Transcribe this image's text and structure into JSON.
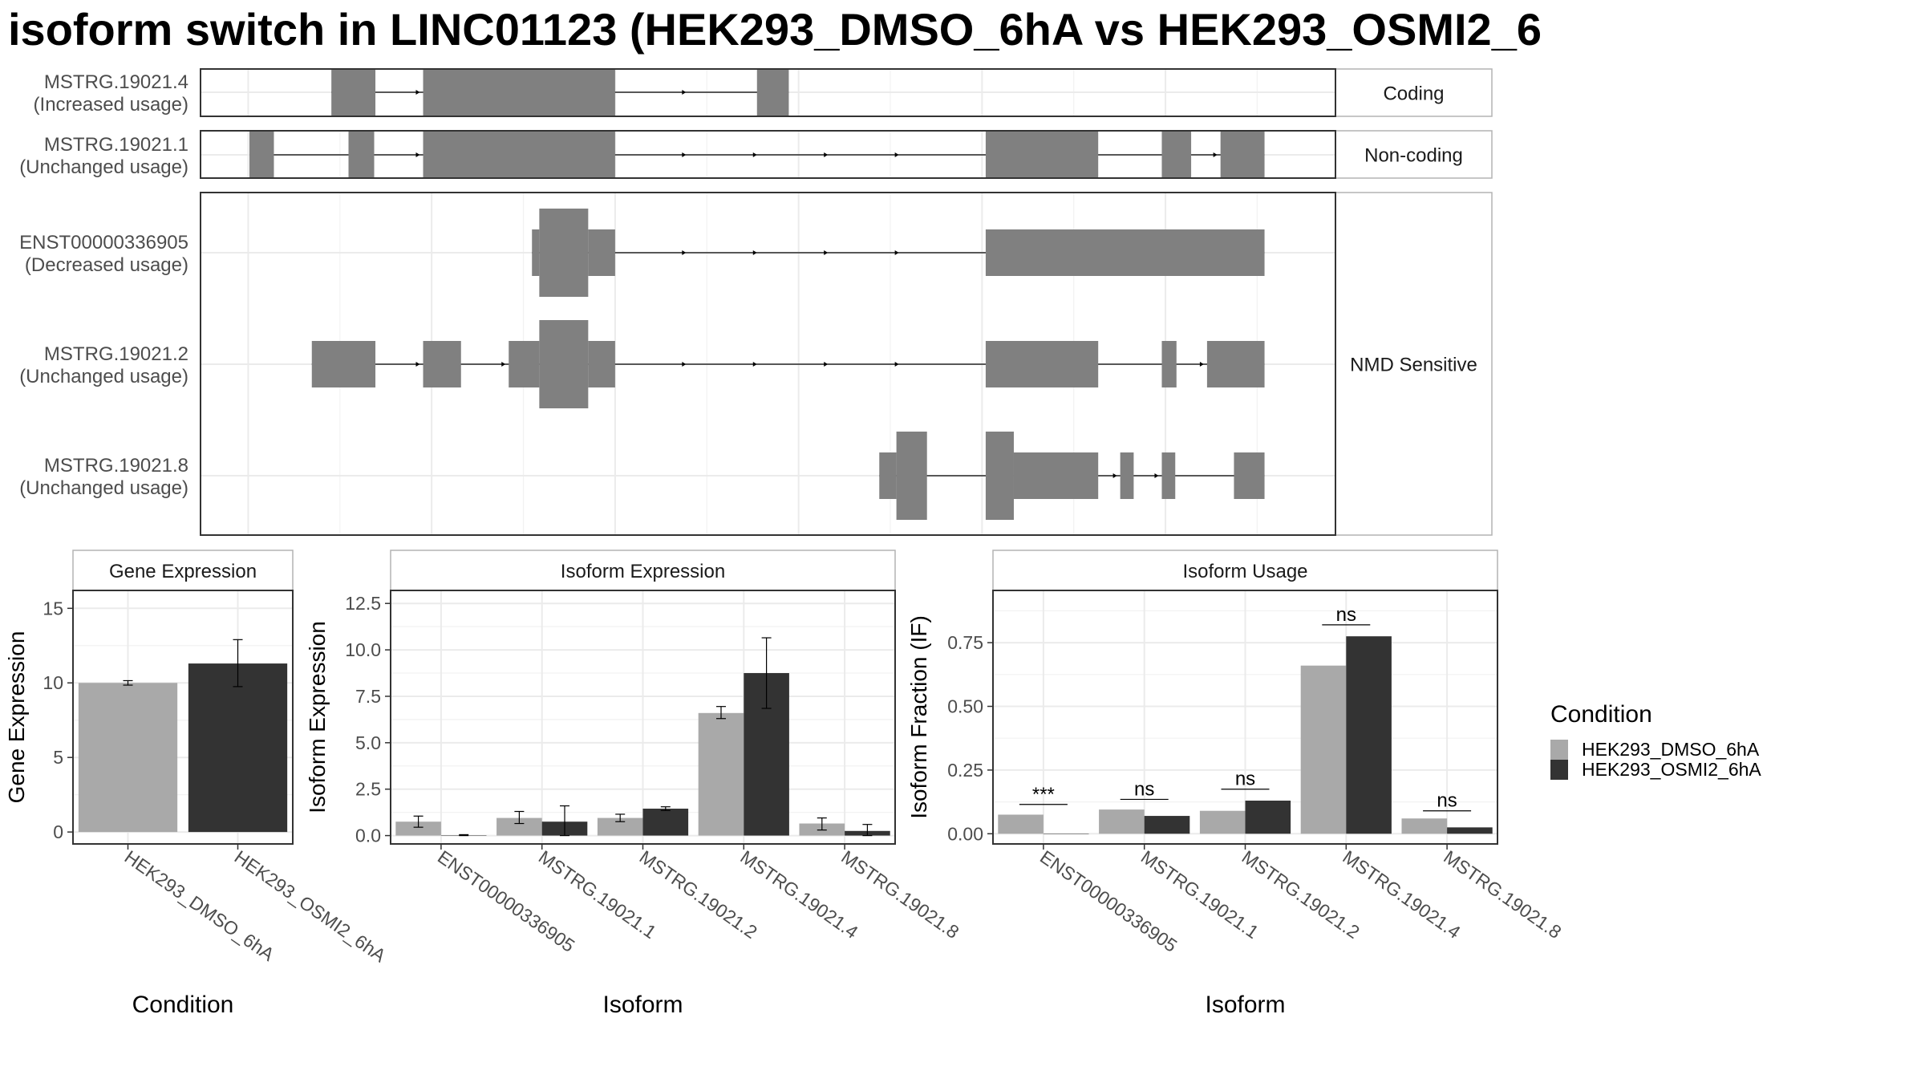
{
  "title": "isoform switch in LINC01123 (HEK293_DMSO_6hA vs HEK293_OSMI2_6",
  "colors": {
    "exon": "#808080",
    "dmso": "#A9A9A9",
    "osmi2": "#333333",
    "grid": "#EBEBEB",
    "border": "#333333",
    "strip_border": "#B3B3B3"
  },
  "structure_panel": {
    "chart_data": {
      "type": "gene-structure",
      "strand": "+",
      "transcripts": [
        {
          "id": "MSTRG.19021.4",
          "usage": "(Increased usage)",
          "class": "Coding",
          "slot": 0,
          "exons": [
            [
              1.68,
              2.04,
              "u"
            ],
            [
              2.43,
              4.0,
              "u"
            ],
            [
              5.16,
              5.42,
              "u"
            ]
          ]
        },
        {
          "id": "MSTRG.19021.1",
          "usage": "(Unchanged usage)",
          "class": "Non-coding",
          "slot": 1,
          "exons": [
            [
              1.01,
              1.21,
              "u"
            ],
            [
              1.82,
              2.03,
              "u"
            ],
            [
              2.43,
              4.0,
              "u"
            ],
            [
              7.03,
              7.95,
              "u"
            ],
            [
              8.47,
              8.71,
              "u"
            ],
            [
              8.95,
              9.31,
              "u"
            ]
          ]
        },
        {
          "id": "ENST00000336905",
          "usage": "(Decreased usage)",
          "class": "NMD Sensitive",
          "slot": 2,
          "exons": [
            [
              3.32,
              3.38,
              "u"
            ],
            [
              3.38,
              3.78,
              "c"
            ],
            [
              3.78,
              4.0,
              "u"
            ],
            [
              7.03,
              9.31,
              "u"
            ]
          ]
        },
        {
          "id": "MSTRG.19021.2",
          "usage": "(Unchanged usage)",
          "class": "NMD Sensitive",
          "slot": 3,
          "exons": [
            [
              1.52,
              2.04,
              "u"
            ],
            [
              2.43,
              2.74,
              "u"
            ],
            [
              3.13,
              3.38,
              "u"
            ],
            [
              3.38,
              3.78,
              "c"
            ],
            [
              3.78,
              4.0,
              "u"
            ],
            [
              7.03,
              7.95,
              "u"
            ],
            [
              8.47,
              8.59,
              "u"
            ],
            [
              8.84,
              9.31,
              "u"
            ]
          ]
        },
        {
          "id": "MSTRG.19021.8",
          "usage": "(Unchanged usage)",
          "class": "NMD Sensitive",
          "slot": 4,
          "exons": [
            [
              6.16,
              6.3,
              "u"
            ],
            [
              6.3,
              6.55,
              "c"
            ],
            [
              7.03,
              7.26,
              "c"
            ],
            [
              7.26,
              7.95,
              "u"
            ],
            [
              8.13,
              8.24,
              "u"
            ],
            [
              8.47,
              8.58,
              "u"
            ],
            [
              9.06,
              9.31,
              "u"
            ]
          ]
        }
      ],
      "facets": [
        "Coding",
        "Non-coding",
        "NMD Sensitive"
      ]
    }
  },
  "gene_expression": {
    "strip": "Gene Expression",
    "ylabel": "Gene Expression",
    "xlabel": "Condition",
    "chart_data": {
      "type": "bar",
      "categories": [
        "HEK293_DMSO_6hA",
        "HEK293_OSMI2_6hA"
      ],
      "values": [
        10.0,
        11.3
      ],
      "error_low": [
        9.85,
        9.75
      ],
      "error_high": [
        10.15,
        12.9
      ],
      "ylim": [
        -0.8,
        16.2
      ],
      "yticks": [
        "0",
        "5",
        "10",
        "15"
      ],
      "grid": true
    }
  },
  "isoform_expression": {
    "strip": "Isoform Expression",
    "ylabel": "Isoform Expression",
    "xlabel": "Isoform",
    "chart_data": {
      "type": "bar",
      "categories": [
        "ENST00000336905",
        "MSTRG.19021.1",
        "MSTRG.19021.2",
        "MSTRG.19021.4",
        "MSTRG.19021.8"
      ],
      "series": [
        {
          "name": "HEK293_DMSO_6hA",
          "values": [
            0.75,
            0.95,
            0.95,
            6.6,
            0.65
          ],
          "error_low": [
            0.45,
            0.65,
            0.75,
            6.3,
            0.3
          ],
          "error_high": [
            1.05,
            1.3,
            1.15,
            6.95,
            0.95
          ]
        },
        {
          "name": "HEK293_OSMI2_6hA",
          "values": [
            0.02,
            0.75,
            1.45,
            8.75,
            0.25
          ],
          "error_low": [
            0.0,
            0.0,
            1.35,
            6.85,
            0.0
          ],
          "error_high": [
            0.05,
            1.6,
            1.55,
            10.65,
            0.6
          ]
        }
      ],
      "ylim": [
        -0.45,
        13.2
      ],
      "yticks": [
        "0.0",
        "2.5",
        "5.0",
        "7.5",
        "10.0",
        "12.5"
      ],
      "grid": true
    }
  },
  "isoform_usage": {
    "strip": "Isoform Usage",
    "ylabel": "Isoform Fraction (IF)",
    "xlabel": "Isoform",
    "chart_data": {
      "type": "bar",
      "categories": [
        "ENST00000336905",
        "MSTRG.19021.1",
        "MSTRG.19021.2",
        "MSTRG.19021.4",
        "MSTRG.19021.8"
      ],
      "series": [
        {
          "name": "HEK293_DMSO_6hA",
          "values": [
            0.075,
            0.095,
            0.09,
            0.66,
            0.06
          ]
        },
        {
          "name": "HEK293_OSMI2_6hA",
          "values": [
            0.0,
            0.07,
            0.13,
            0.775,
            0.025
          ]
        }
      ],
      "significance": [
        "***",
        "ns",
        "ns",
        "ns",
        "ns"
      ],
      "sig_line_y": [
        0.115,
        0.135,
        0.175,
        0.82,
        0.09
      ],
      "ylim": [
        -0.04,
        0.955
      ],
      "yticks": [
        "0.00",
        "0.25",
        "0.50",
        "0.75"
      ],
      "grid": true
    }
  },
  "legend": {
    "title": "Condition",
    "items": [
      "HEK293_DMSO_6hA",
      "HEK293_OSMI2_6hA"
    ],
    "position": "right"
  }
}
